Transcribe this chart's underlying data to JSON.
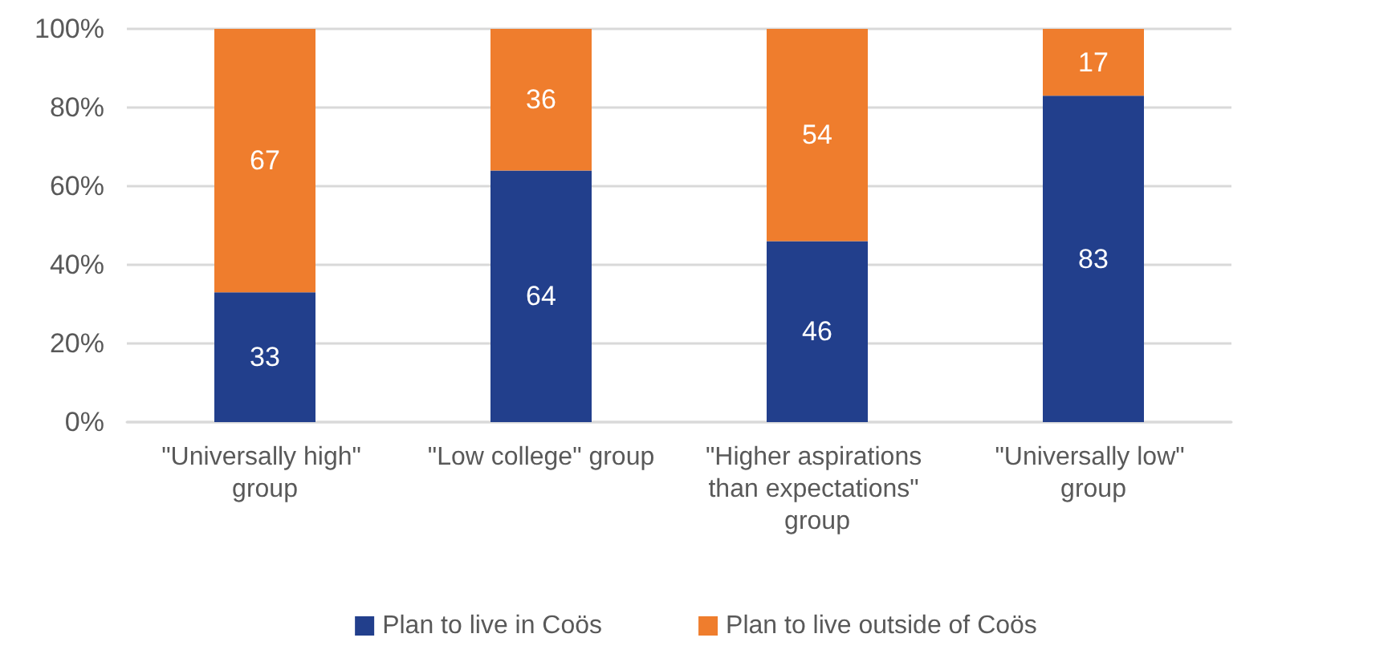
{
  "chart_data": {
    "type": "bar",
    "stacked": true,
    "categories": [
      "\"Universally high\" group",
      "\"Low college\" group",
      "\"Higher aspirations than expectations\" group",
      "\"Universally low\" group"
    ],
    "series": [
      {
        "name": "Plan to live in Coös",
        "color": "#223f8c",
        "values": [
          33,
          64,
          46,
          83
        ]
      },
      {
        "name": "Plan to live outside of Coös",
        "color": "#ef7d2d",
        "values": [
          67,
          36,
          54,
          17
        ]
      }
    ],
    "ylim": [
      0,
      100
    ],
    "yticks": [
      {
        "value": 0,
        "label": "0%"
      },
      {
        "value": 20,
        "label": "20%"
      },
      {
        "value": 40,
        "label": "40%"
      },
      {
        "value": 60,
        "label": "60%"
      },
      {
        "value": 80,
        "label": "80%"
      },
      {
        "value": 100,
        "label": "100%"
      }
    ],
    "grid": "y",
    "legend": "bottom",
    "data_labels": true
  }
}
